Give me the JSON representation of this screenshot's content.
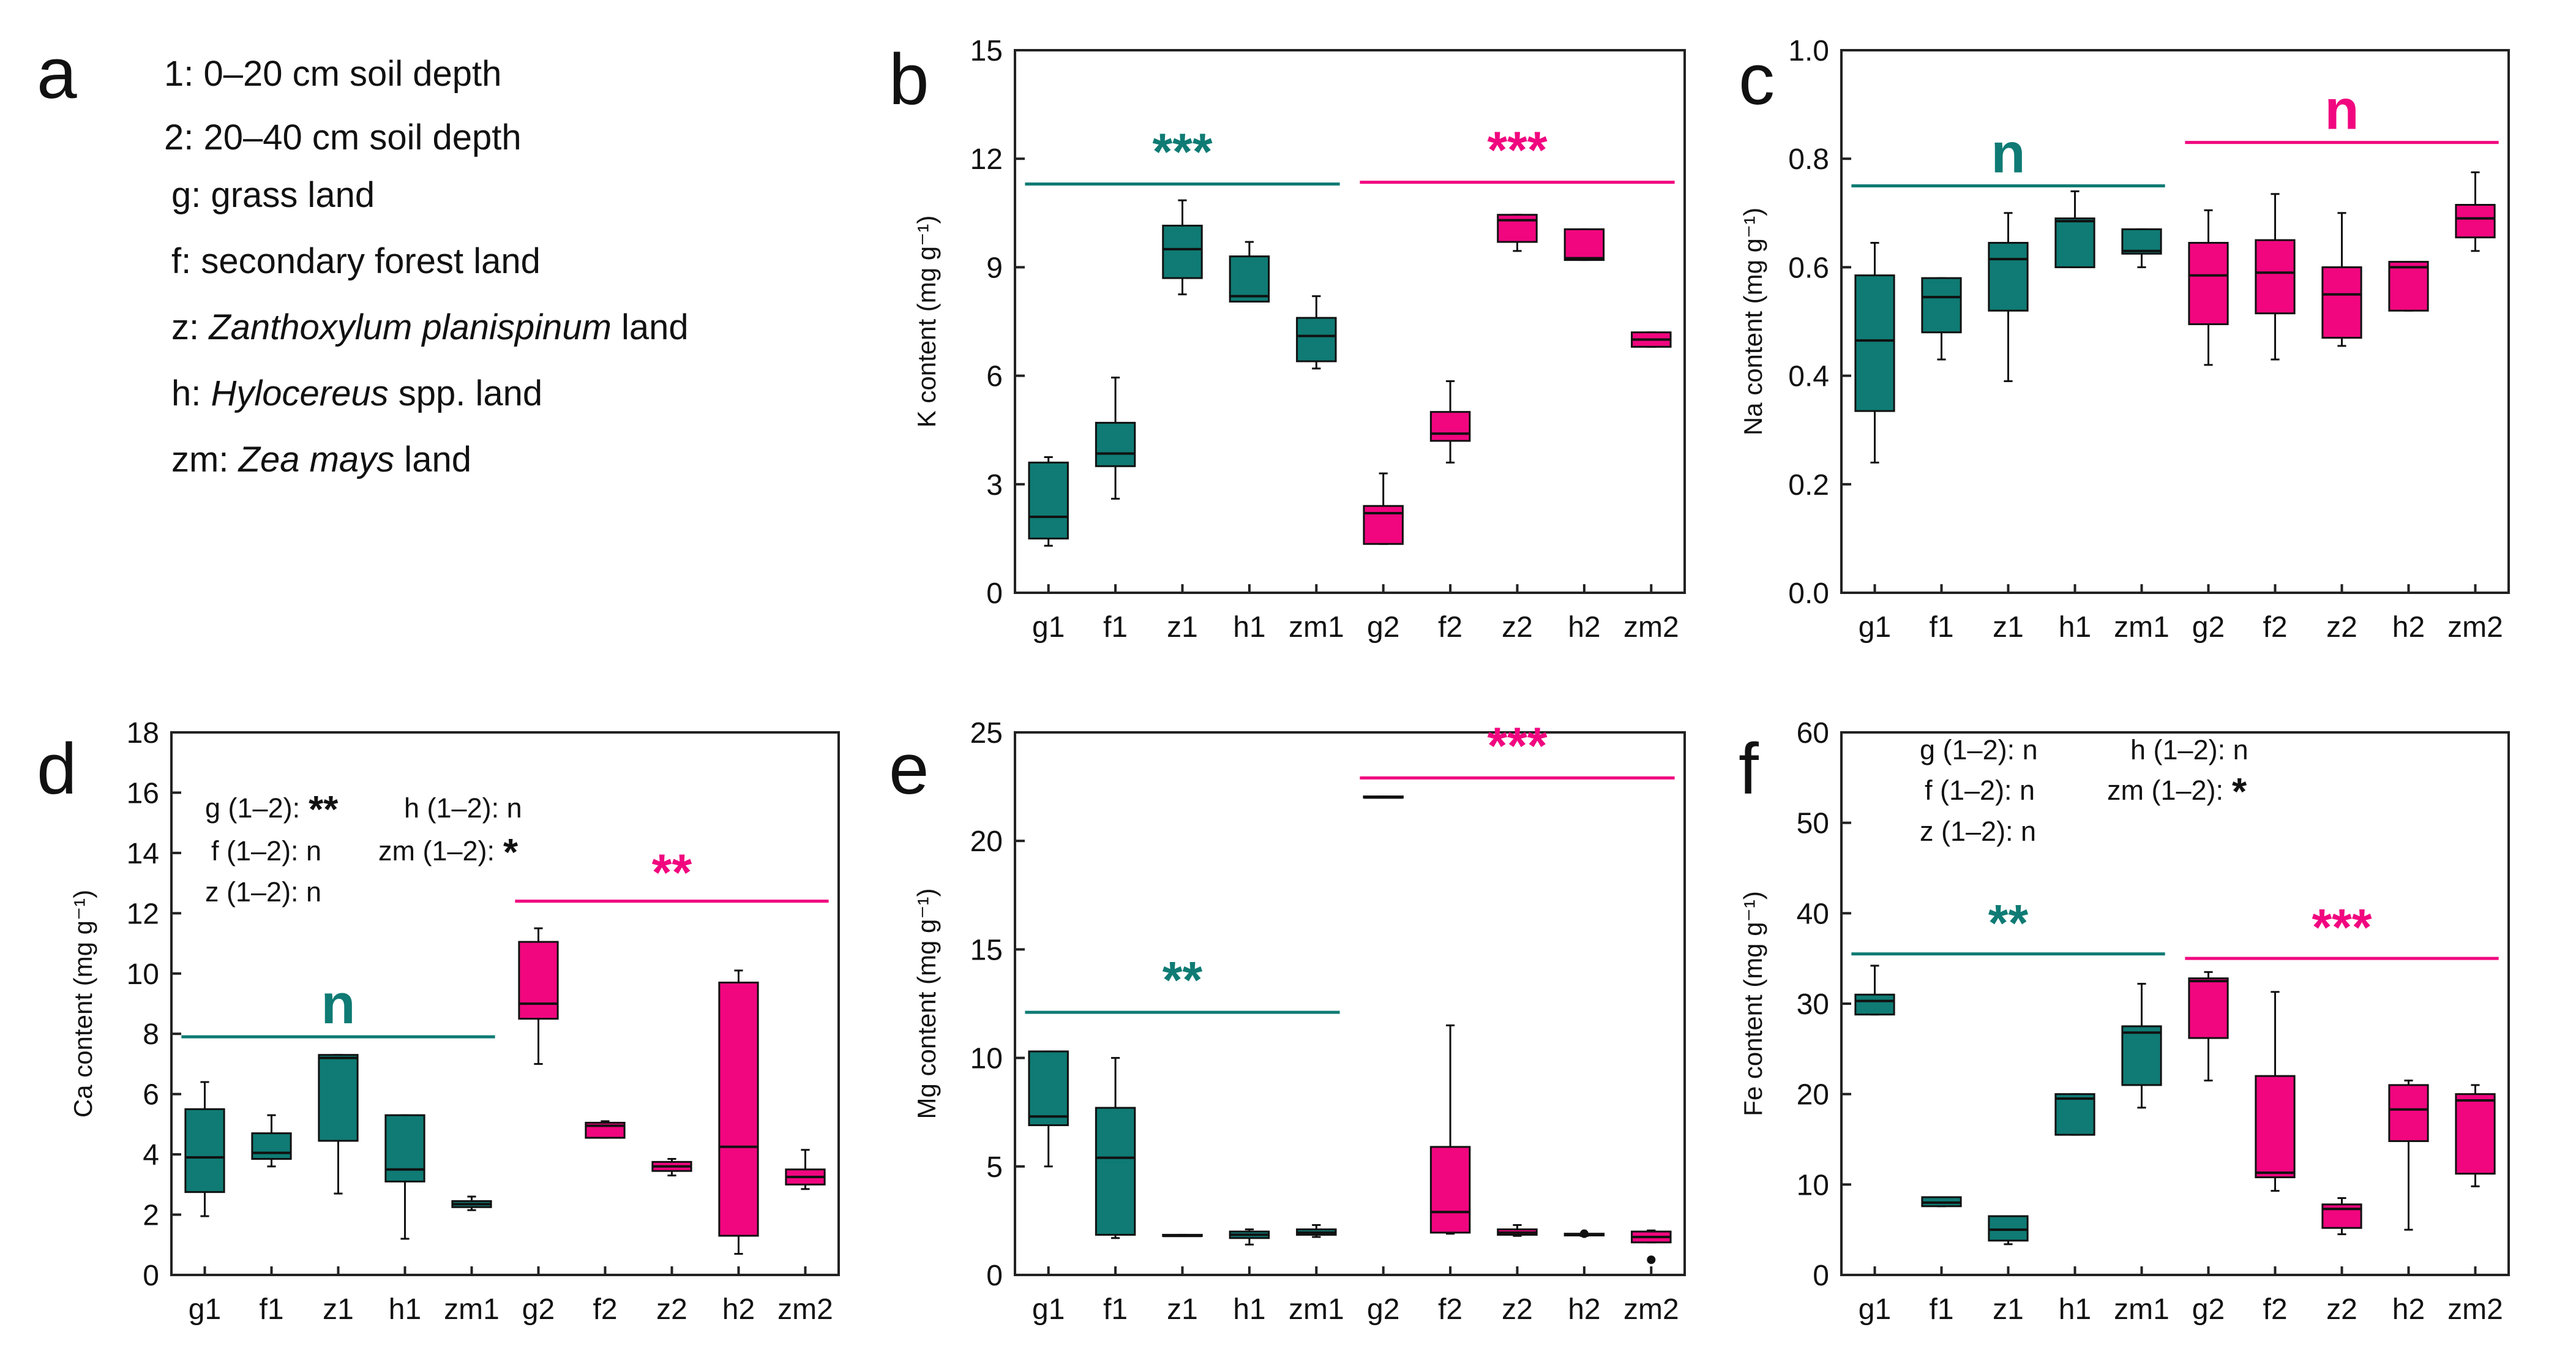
{
  "colors": {
    "group1": "#0f7b74",
    "group2": "#f1067f",
    "axis": "#222222",
    "ink": "#111111"
  },
  "panel_a": {
    "letter": "a",
    "legend": [
      {
        "prefix": "1: 0–20 cm soil depth",
        "italic": "",
        "suffix": ""
      },
      {
        "prefix": "2: 20–40 cm soil depth",
        "italic": "",
        "suffix": ""
      },
      {
        "prefix": "g: grass land",
        "italic": "",
        "suffix": ""
      },
      {
        "prefix": "f: secondary forest land",
        "italic": "",
        "suffix": ""
      },
      {
        "prefix": "z: ",
        "italic": "Zanthoxylum planispinum",
        "suffix": " land"
      },
      {
        "prefix": "h: ",
        "italic": "Hylocereus",
        "suffix": " spp. land"
      },
      {
        "prefix": "zm: ",
        "italic": "Zea mays",
        "suffix": " land"
      }
    ]
  },
  "chart_data": [
    {
      "id": "b",
      "letter": "b",
      "type": "box",
      "ylabel": "K content",
      "yunit": "(mg g⁻¹)",
      "ylim": [
        0,
        15
      ],
      "yticks": [
        0,
        3,
        6,
        9,
        12,
        15
      ],
      "ytick_labels": [
        "0",
        "3",
        "6",
        "9",
        "12",
        "15"
      ],
      "categories": [
        "g1",
        "f1",
        "z1",
        "h1",
        "zm1",
        "g2",
        "f2",
        "z2",
        "h2",
        "zm2"
      ],
      "boxes": [
        {
          "cat": "g1",
          "min": 1.3,
          "q1": 1.5,
          "median": 2.1,
          "q3": 3.6,
          "max": 3.75
        },
        {
          "cat": "f1",
          "min": 2.6,
          "q1": 3.5,
          "median": 3.85,
          "q3": 4.7,
          "max": 5.95
        },
        {
          "cat": "z1",
          "min": 8.25,
          "q1": 8.7,
          "median": 9.5,
          "q3": 10.15,
          "max": 10.85
        },
        {
          "cat": "h1",
          "min": 8.05,
          "q1": 8.05,
          "median": 8.2,
          "q3": 9.3,
          "max": 9.7
        },
        {
          "cat": "zm1",
          "min": 6.2,
          "q1": 6.4,
          "median": 7.1,
          "q3": 7.6,
          "max": 8.2
        },
        {
          "cat": "g2",
          "min": 1.35,
          "q1": 1.35,
          "median": 2.2,
          "q3": 2.4,
          "max": 3.3
        },
        {
          "cat": "f2",
          "min": 3.6,
          "q1": 4.2,
          "median": 4.4,
          "q3": 5.0,
          "max": 5.85
        },
        {
          "cat": "z2",
          "min": 9.45,
          "q1": 9.7,
          "median": 10.3,
          "q3": 10.45,
          "max": 10.45
        },
        {
          "cat": "h2",
          "min": 9.2,
          "q1": 9.2,
          "median": 9.25,
          "q3": 10.05,
          "max": 10.05
        },
        {
          "cat": "zm2",
          "min": 6.8,
          "q1": 6.8,
          "median": 7.0,
          "q3": 7.2,
          "max": 7.2
        }
      ],
      "outliers": [],
      "significance": [
        {
          "text": "***",
          "group": "group1",
          "from": 0,
          "to": 4,
          "y": 11.3
        },
        {
          "text": "***",
          "group": "group2",
          "from": 5,
          "to": 9,
          "y": 11.35
        }
      ],
      "notes": []
    },
    {
      "id": "c",
      "letter": "c",
      "type": "box",
      "ylabel": "Na content",
      "yunit": "(mg g⁻¹)",
      "ylim": [
        0,
        1.0
      ],
      "yticks": [
        0,
        0.2,
        0.4,
        0.6,
        0.8,
        1.0
      ],
      "ytick_labels": [
        "0.0",
        "0.2",
        "0.4",
        "0.6",
        "0.8",
        "1.0"
      ],
      "categories": [
        "g1",
        "f1",
        "z1",
        "h1",
        "zm1",
        "g2",
        "f2",
        "z2",
        "h2",
        "zm2"
      ],
      "boxes": [
        {
          "cat": "g1",
          "min": 0.24,
          "q1": 0.335,
          "median": 0.465,
          "q3": 0.585,
          "max": 0.645
        },
        {
          "cat": "f1",
          "min": 0.43,
          "q1": 0.48,
          "median": 0.545,
          "q3": 0.58,
          "max": 0.58
        },
        {
          "cat": "z1",
          "min": 0.39,
          "q1": 0.52,
          "median": 0.615,
          "q3": 0.645,
          "max": 0.7
        },
        {
          "cat": "h1",
          "min": 0.6,
          "q1": 0.6,
          "median": 0.685,
          "q3": 0.69,
          "max": 0.74
        },
        {
          "cat": "zm1",
          "min": 0.6,
          "q1": 0.625,
          "median": 0.63,
          "q3": 0.67,
          "max": 0.67
        },
        {
          "cat": "g2",
          "min": 0.42,
          "q1": 0.495,
          "median": 0.585,
          "q3": 0.645,
          "max": 0.705
        },
        {
          "cat": "f2",
          "min": 0.43,
          "q1": 0.515,
          "median": 0.59,
          "q3": 0.65,
          "max": 0.735
        },
        {
          "cat": "z2",
          "min": 0.455,
          "q1": 0.47,
          "median": 0.55,
          "q3": 0.6,
          "max": 0.7
        },
        {
          "cat": "h2",
          "min": 0.52,
          "q1": 0.52,
          "median": 0.6,
          "q3": 0.61,
          "max": 0.61
        },
        {
          "cat": "zm2",
          "min": 0.63,
          "q1": 0.655,
          "median": 0.69,
          "q3": 0.715,
          "max": 0.775
        }
      ],
      "outliers": [],
      "significance": [
        {
          "text": "n",
          "group": "group1",
          "from": 0,
          "to": 4,
          "y": 0.75
        },
        {
          "text": "n",
          "group": "group2",
          "from": 5,
          "to": 9,
          "y": 0.83
        }
      ],
      "notes": []
    },
    {
      "id": "d",
      "letter": "d",
      "type": "box",
      "ylabel": "Ca content",
      "yunit": "(mg g⁻¹)",
      "ylim": [
        0,
        18
      ],
      "yticks": [
        0,
        2,
        4,
        6,
        8,
        10,
        12,
        14,
        16,
        18
      ],
      "ytick_labels": [
        "0",
        "2",
        "4",
        "6",
        "8",
        "10",
        "12",
        "14",
        "16",
        "18"
      ],
      "categories": [
        "g1",
        "f1",
        "z1",
        "h1",
        "zm1",
        "g2",
        "f2",
        "z2",
        "h2",
        "zm2"
      ],
      "boxes": [
        {
          "cat": "g1",
          "min": 1.95,
          "q1": 2.75,
          "median": 3.9,
          "q3": 5.5,
          "max": 6.4
        },
        {
          "cat": "f1",
          "min": 3.6,
          "q1": 3.85,
          "median": 4.05,
          "q3": 4.7,
          "max": 5.3
        },
        {
          "cat": "z1",
          "min": 2.7,
          "q1": 4.45,
          "median": 7.2,
          "q3": 7.3,
          "max": 7.3
        },
        {
          "cat": "h1",
          "min": 1.2,
          "q1": 3.1,
          "median": 3.5,
          "q3": 5.3,
          "max": 5.3
        },
        {
          "cat": "zm1",
          "min": 2.15,
          "q1": 2.25,
          "median": 2.35,
          "q3": 2.45,
          "max": 2.6
        },
        {
          "cat": "g2",
          "min": 7.0,
          "q1": 8.5,
          "median": 9.0,
          "q3": 11.05,
          "max": 11.5
        },
        {
          "cat": "f2",
          "min": 4.55,
          "q1": 4.55,
          "median": 4.95,
          "q3": 5.05,
          "max": 5.1
        },
        {
          "cat": "z2",
          "min": 3.3,
          "q1": 3.45,
          "median": 3.6,
          "q3": 3.75,
          "max": 3.85
        },
        {
          "cat": "h2",
          "min": 0.7,
          "q1": 1.3,
          "median": 4.25,
          "q3": 9.7,
          "max": 10.1
        },
        {
          "cat": "zm2",
          "min": 2.85,
          "q1": 3.0,
          "median": 3.25,
          "q3": 3.5,
          "max": 4.15
        }
      ],
      "outliers": [],
      "significance": [
        {
          "text": "n",
          "group": "group1",
          "from": 0,
          "to": 4,
          "y": 7.9
        },
        {
          "text": "**",
          "group": "group2",
          "from": 5,
          "to": 9,
          "y": 12.4
        }
      ],
      "notes": [
        {
          "text": "g (1–2):",
          "star": "**"
        },
        {
          "text": "f (1–2): n",
          "star": ""
        },
        {
          "text": "z (1–2): n",
          "star": ""
        },
        {
          "text": "h (1–2): n",
          "star": ""
        },
        {
          "text": "zm (1–2):",
          "star": "*"
        }
      ]
    },
    {
      "id": "e",
      "letter": "e",
      "type": "box",
      "ylabel": "Mg content",
      "yunit": "(mg g⁻¹)",
      "ylim": [
        0,
        25
      ],
      "yticks": [
        0,
        5,
        10,
        15,
        20,
        25
      ],
      "ytick_labels": [
        "0",
        "5",
        "10",
        "15",
        "20",
        "25"
      ],
      "categories": [
        "g1",
        "f1",
        "z1",
        "h1",
        "zm1",
        "g2",
        "f2",
        "z2",
        "h2",
        "zm2"
      ],
      "boxes": [
        {
          "cat": "g1",
          "min": 5.0,
          "q1": 6.9,
          "median": 7.3,
          "q3": 10.3,
          "max": 10.3
        },
        {
          "cat": "f1",
          "min": 1.7,
          "q1": 1.85,
          "median": 5.4,
          "q3": 7.7,
          "max": 10.0
        },
        {
          "cat": "z1",
          "min": 1.8,
          "q1": 1.8,
          "median": 1.8,
          "q3": 1.85,
          "max": 1.85
        },
        {
          "cat": "h1",
          "min": 1.4,
          "q1": 1.7,
          "median": 1.85,
          "q3": 2.0,
          "max": 2.1
        },
        {
          "cat": "zm1",
          "min": 1.75,
          "q1": 1.85,
          "median": 1.95,
          "q3": 2.1,
          "max": 2.3
        },
        {
          "cat": "g2",
          "min": 22.0,
          "q1": 22.0,
          "median": 22.0,
          "q3": 22.05,
          "max": 22.05
        },
        {
          "cat": "f2",
          "min": 1.9,
          "q1": 1.95,
          "median": 2.9,
          "q3": 5.9,
          "max": 11.5
        },
        {
          "cat": "z2",
          "min": 1.8,
          "q1": 1.85,
          "median": 1.95,
          "q3": 2.1,
          "max": 2.3
        },
        {
          "cat": "h2",
          "min": 1.8,
          "q1": 1.82,
          "median": 1.85,
          "q3": 1.9,
          "max": 1.9
        },
        {
          "cat": "zm2",
          "min": 1.5,
          "q1": 1.5,
          "median": 1.75,
          "q3": 2.0,
          "max": 2.05
        }
      ],
      "outliers": [
        {
          "cat": "h2",
          "value": 1.9
        },
        {
          "cat": "zm2",
          "value": 0.7
        }
      ],
      "significance": [
        {
          "text": "**",
          "group": "group1",
          "from": 0,
          "to": 4,
          "y": 12.1
        },
        {
          "text": "***",
          "group": "group2",
          "from": 5,
          "to": 9,
          "y": 22.9
        }
      ],
      "notes": []
    },
    {
      "id": "f",
      "letter": "f",
      "type": "box",
      "ylabel": "Fe content",
      "yunit": "(mg g⁻¹)",
      "ylim": [
        0,
        60
      ],
      "yticks": [
        0,
        10,
        20,
        30,
        40,
        50,
        60
      ],
      "ytick_labels": [
        "0",
        "10",
        "20",
        "30",
        "40",
        "50",
        "60"
      ],
      "categories": [
        "g1",
        "f1",
        "z1",
        "h1",
        "zm1",
        "g2",
        "f2",
        "z2",
        "h2",
        "zm2"
      ],
      "boxes": [
        {
          "cat": "g1",
          "min": 28.8,
          "q1": 28.8,
          "median": 30.3,
          "q3": 31.0,
          "max": 34.2
        },
        {
          "cat": "f1",
          "min": 7.6,
          "q1": 7.6,
          "median": 8.0,
          "q3": 8.6,
          "max": 8.6
        },
        {
          "cat": "z1",
          "min": 3.4,
          "q1": 3.8,
          "median": 5.0,
          "q3": 6.5,
          "max": 6.5
        },
        {
          "cat": "h1",
          "min": 15.5,
          "q1": 15.5,
          "median": 19.5,
          "q3": 20.0,
          "max": 20.0
        },
        {
          "cat": "zm1",
          "min": 18.5,
          "q1": 21.0,
          "median": 26.8,
          "q3": 27.5,
          "max": 32.2
        },
        {
          "cat": "g2",
          "min": 21.5,
          "q1": 26.2,
          "median": 32.5,
          "q3": 32.8,
          "max": 33.5
        },
        {
          "cat": "f2",
          "min": 9.3,
          "q1": 10.8,
          "median": 11.3,
          "q3": 22.0,
          "max": 31.3
        },
        {
          "cat": "z2",
          "min": 4.5,
          "q1": 5.2,
          "median": 7.3,
          "q3": 7.8,
          "max": 8.5
        },
        {
          "cat": "h2",
          "min": 5.0,
          "q1": 14.8,
          "median": 18.3,
          "q3": 21.0,
          "max": 21.5
        },
        {
          "cat": "zm2",
          "min": 9.8,
          "q1": 11.2,
          "median": 19.3,
          "q3": 20.0,
          "max": 21.0
        }
      ],
      "outliers": [],
      "significance": [
        {
          "text": "**",
          "group": "group1",
          "from": 0,
          "to": 4,
          "y": 35.5
        },
        {
          "text": "***",
          "group": "group2",
          "from": 5,
          "to": 9,
          "y": 35.0
        }
      ],
      "notes": [
        {
          "text": "g (1–2): n",
          "star": ""
        },
        {
          "text": "f (1–2): n",
          "star": ""
        },
        {
          "text": "z (1–2): n",
          "star": ""
        },
        {
          "text": "h (1–2): n",
          "star": ""
        },
        {
          "text": "zm (1–2):",
          "star": "*"
        }
      ]
    }
  ]
}
